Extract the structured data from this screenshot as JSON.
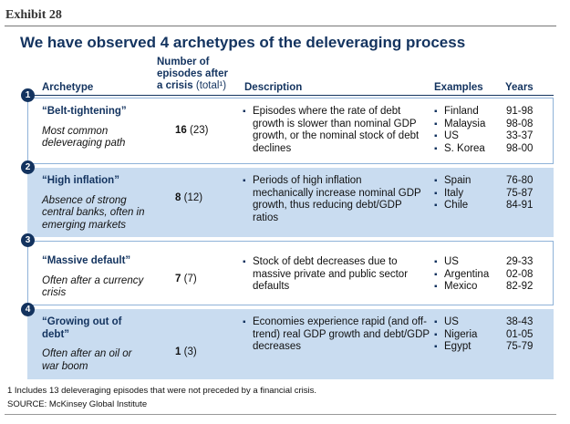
{
  "exhibit": "Exhibit 28",
  "title": "We have observed 4 archetypes of the deleveraging process",
  "headers": {
    "archetype": "Archetype",
    "episodes_line1": "Number of",
    "episodes_line2": "episodes after",
    "episodes_line3": "a crisis",
    "episodes_total": "(total¹)",
    "description": "Description",
    "examples": "Examples",
    "years": "Years"
  },
  "rows": [
    {
      "badge": "1",
      "name": "“Belt-tightening”",
      "subtitle": "Most common deleveraging path",
      "count": "16",
      "total": "(23)",
      "description": "Episodes where the rate of debt growth is slower than nominal GDP growth, or the nominal stock of debt declines",
      "examples": [
        "Finland",
        "Malaysia",
        "US",
        "S. Korea"
      ],
      "years": [
        "91-98",
        "98-08",
        "33-37",
        "98-00"
      ]
    },
    {
      "badge": "2",
      "name": "“High inflation”",
      "subtitle": "Absence of strong central banks, often in emerging markets",
      "count": "8",
      "total": "(12)",
      "description": "Periods of high inflation mechanically increase nominal GDP growth, thus reducing debt/GDP ratios",
      "examples": [
        "Spain",
        "Italy",
        "Chile"
      ],
      "years": [
        "76-80",
        "75-87",
        "84-91"
      ]
    },
    {
      "badge": "3",
      "name": "“Massive default”",
      "subtitle": "Often after a currency crisis",
      "count": "7",
      "total": "(7)",
      "description": "Stock of debt decreases due to massive private and public sector defaults",
      "examples": [
        "US",
        "Argentina",
        "Mexico"
      ],
      "years": [
        "29-33",
        "02-08",
        "82-92"
      ]
    },
    {
      "badge": "4",
      "name": "“Growing out of debt”",
      "subtitle": "Often after an oil or war boom",
      "count": "1",
      "total": "(3)",
      "description": "Economies experience rapid (and off-trend) real GDP growth and debt/GDP decreases",
      "examples": [
        "US",
        "Nigeria",
        "Egypt"
      ],
      "years": [
        "38-43",
        "01-05",
        "75-79"
      ]
    }
  ],
  "footnote": "1 Includes 13 deleveraging episodes that were not preceded by a financial crisis.",
  "source": "SOURCE: McKinsey Global Institute",
  "colors": {
    "navy": "#13335f",
    "shade": "#c9dcf0",
    "border": "#8fb2d8"
  }
}
